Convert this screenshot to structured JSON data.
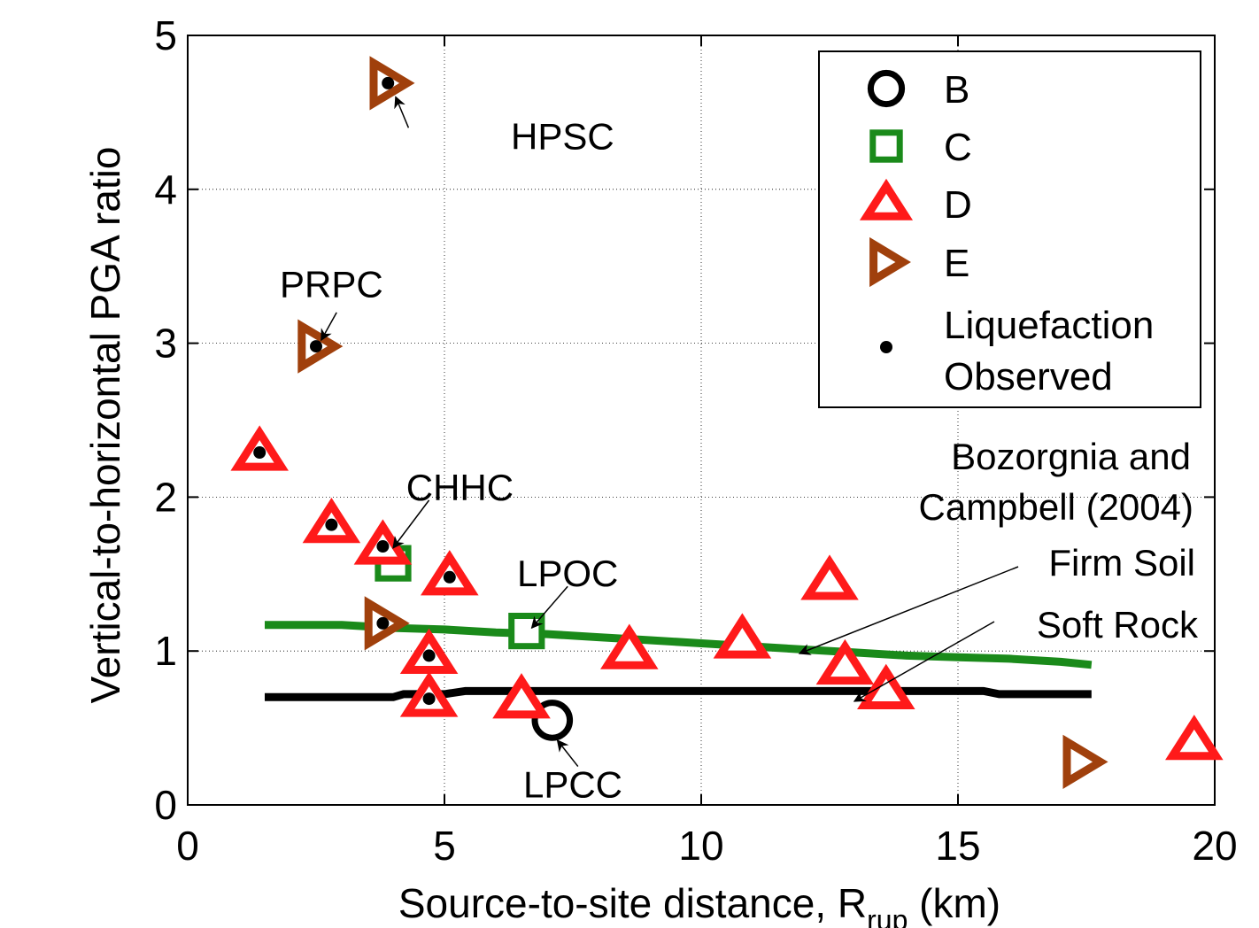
{
  "chart_data": {
    "type": "scatter",
    "xlabel": "Source-to-site distance, R",
    "xlabel_sub": "rup",
    "xlabel_unit": " (km)",
    "ylabel": "Vertical-to-horizontal PGA ratio",
    "xlim": [
      0,
      20
    ],
    "ylim": [
      0,
      5
    ],
    "xticks": [
      0,
      5,
      10,
      15,
      20
    ],
    "yticks": [
      0,
      1,
      2,
      3,
      4,
      5
    ],
    "xtick_labels": [
      "0",
      "5",
      "10",
      "15",
      "20"
    ],
    "ytick_labels": [
      "0",
      "1",
      "2",
      "3",
      "4",
      "5"
    ],
    "grid": true,
    "legend_placement": "top-right",
    "legend": [
      {
        "key": "B",
        "label": "B",
        "marker": "circle",
        "color": "#000000"
      },
      {
        "key": "C",
        "label": "C",
        "marker": "square",
        "color": "#1a8a1a"
      },
      {
        "key": "D",
        "label": "D",
        "marker": "triangle-up",
        "color": "#ff1a1a"
      },
      {
        "key": "E",
        "label": "E",
        "marker": "triangle-right",
        "color": "#a0400c"
      },
      {
        "key": "liq",
        "label_lines": [
          "Liquefaction",
          "Observed"
        ],
        "marker": "dot",
        "color": "#000000"
      }
    ],
    "series": [
      {
        "site_class": "B",
        "points": [
          {
            "x": 7.1,
            "y": 0.55,
            "liq": false
          }
        ]
      },
      {
        "site_class": "C",
        "points": [
          {
            "x": 4.0,
            "y": 1.57,
            "liq": false
          },
          {
            "x": 6.6,
            "y": 1.13,
            "liq": false
          }
        ]
      },
      {
        "site_class": "D",
        "points": [
          {
            "x": 1.4,
            "y": 2.29,
            "liq": true
          },
          {
            "x": 2.8,
            "y": 1.82,
            "liq": true
          },
          {
            "x": 3.8,
            "y": 1.68,
            "liq": true
          },
          {
            "x": 5.1,
            "y": 1.48,
            "liq": true
          },
          {
            "x": 4.7,
            "y": 0.97,
            "liq": true
          },
          {
            "x": 4.7,
            "y": 0.69,
            "liq": true
          },
          {
            "x": 6.5,
            "y": 0.68,
            "liq": false
          },
          {
            "x": 8.6,
            "y": 1.0,
            "liq": false
          },
          {
            "x": 10.8,
            "y": 1.07,
            "liq": false
          },
          {
            "x": 12.5,
            "y": 1.45,
            "liq": false
          },
          {
            "x": 12.8,
            "y": 0.9,
            "liq": false
          },
          {
            "x": 13.6,
            "y": 0.74,
            "liq": false
          },
          {
            "x": 19.6,
            "y": 0.41,
            "liq": false
          }
        ]
      },
      {
        "site_class": "E",
        "points": [
          {
            "x": 3.9,
            "y": 4.69,
            "liq": true
          },
          {
            "x": 2.5,
            "y": 2.98,
            "liq": true
          },
          {
            "x": 3.8,
            "y": 1.18,
            "liq": true
          },
          {
            "x": 17.4,
            "y": 0.28,
            "liq": false
          }
        ]
      }
    ],
    "lines": [
      {
        "name": "Firm Soil",
        "color": "#1a8a1a",
        "x": [
          1.5,
          3.0,
          4.0,
          5.0,
          6.0,
          7.0,
          8.0,
          9.0,
          10.0,
          11.0,
          12.0,
          13.0,
          14.0,
          15.0,
          16.0,
          17.0,
          17.6
        ],
        "y": [
          1.17,
          1.17,
          1.15,
          1.14,
          1.12,
          1.11,
          1.09,
          1.07,
          1.05,
          1.03,
          1.01,
          0.99,
          0.97,
          0.96,
          0.95,
          0.93,
          0.91
        ]
      },
      {
        "name": "Soft Rock",
        "color": "#000000",
        "x": [
          1.5,
          4.0,
          4.2,
          5.0,
          5.4,
          15.5,
          15.8,
          17.6
        ],
        "y": [
          0.7,
          0.7,
          0.72,
          0.72,
          0.74,
          0.74,
          0.72,
          0.72
        ]
      }
    ],
    "annotations": [
      {
        "text": "HPSC",
        "x": 7.3,
        "y": 4.26,
        "arrow_from": [
          4.3,
          4.4
        ],
        "arrow_to": [
          4.05,
          4.6
        ]
      },
      {
        "text": "PRPC",
        "x": 2.8,
        "y": 3.3,
        "arrow_from": [
          2.9,
          3.2
        ],
        "arrow_to": [
          2.6,
          3.02
        ]
      },
      {
        "text": "CHHC",
        "x": 5.3,
        "y": 1.98,
        "arrow_from": [
          4.7,
          1.98
        ],
        "arrow_to": [
          4.0,
          1.67
        ]
      },
      {
        "text": "LPOC",
        "x": 7.4,
        "y": 1.42,
        "arrow_from": [
          7.4,
          1.42
        ],
        "arrow_to": [
          6.7,
          1.15
        ]
      },
      {
        "text": "LPCC",
        "x": 7.5,
        "y": 0.05,
        "arrow_from": [
          7.6,
          0.25
        ],
        "arrow_to": [
          7.2,
          0.42
        ]
      }
    ],
    "ref_label_lines": [
      "Bozorgnia and",
      "Campbell (2004)"
    ],
    "firm_soil_label": "Firm Soil",
    "soft_rock_label": "Soft Rock"
  }
}
